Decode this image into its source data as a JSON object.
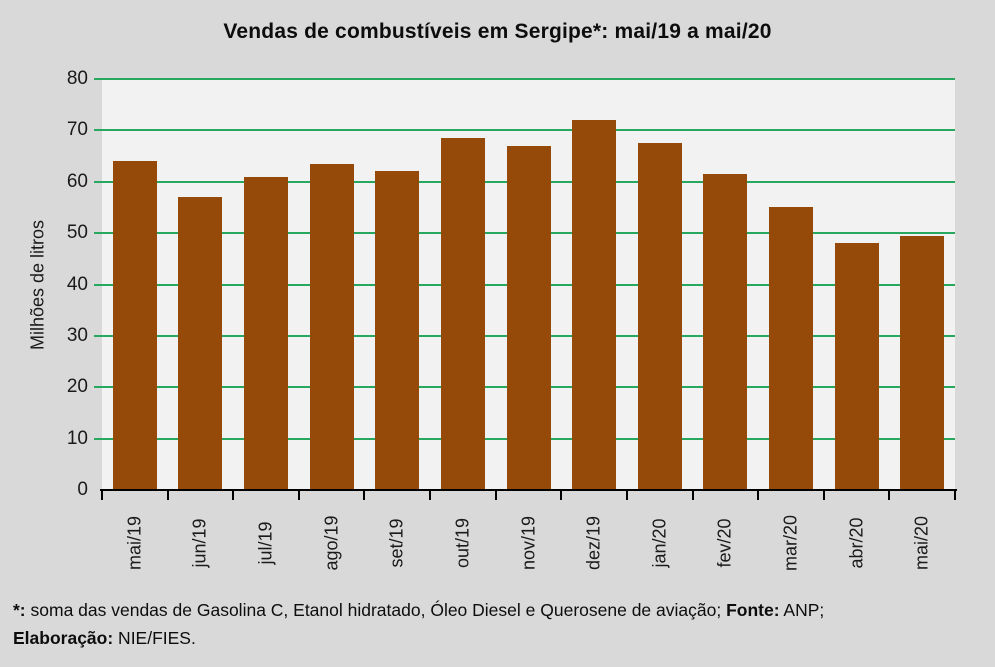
{
  "chart_data": {
    "type": "bar",
    "title": "Vendas de combustíveis em Sergipe*: mai/19 a mai/20",
    "categories": [
      "mai/19",
      "jun/19",
      "jul/19",
      "ago/19",
      "set/19",
      "out/19",
      "nov/19",
      "dez/19",
      "jan/20",
      "fev/20",
      "mar/20",
      "abr/20",
      "mai/20"
    ],
    "values": [
      64,
      57,
      61,
      63.5,
      62,
      68.5,
      67,
      72,
      67.5,
      61.5,
      55,
      48,
      49.5
    ],
    "xlabel": "",
    "ylabel": "Milhões de litros",
    "ylim": [
      0,
      80
    ],
    "ytick_step": 10,
    "grid": true,
    "legend": false,
    "colors": {
      "bar": "#964a0a",
      "gridline": "#28a75e",
      "plot_background": "#f2f2f2",
      "outer_background": "#d9d9d9",
      "axis_text": "#1a1a1a"
    }
  },
  "footnote": {
    "segments": [
      {
        "text": "*:",
        "bold": true
      },
      {
        "text": " soma das vendas de Gasolina C, Etanol hidratado, Óleo Diesel e Querosene de aviação; ",
        "bold": false
      },
      {
        "text": "Fonte:",
        "bold": true
      },
      {
        "text": " ANP;",
        "bold": false,
        "break_after": true
      },
      {
        "text": "Elaboração:",
        "bold": true
      },
      {
        "text": " NIE/FIES.",
        "bold": false
      }
    ]
  }
}
